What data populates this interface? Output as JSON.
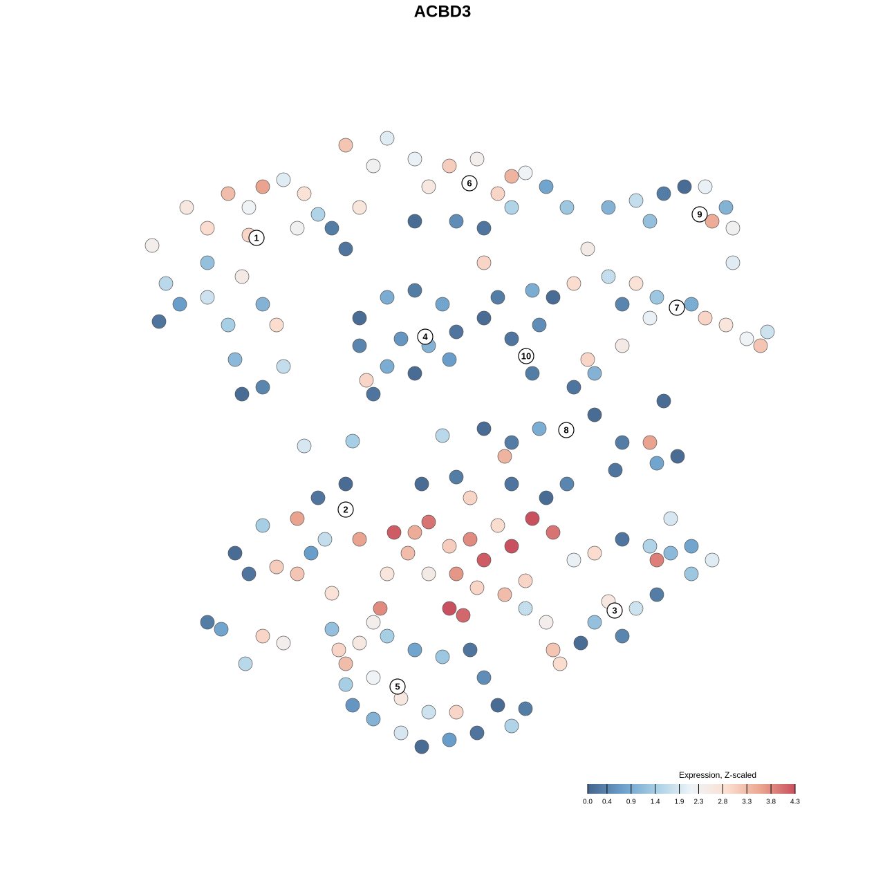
{
  "chart_data": {
    "type": "scatter",
    "title": "ACBD3",
    "xlim": [
      200,
      1130
    ],
    "ylim": [
      1095,
      185
    ],
    "x": [
      220,
      240,
      270,
      300,
      330,
      360,
      380,
      410,
      440,
      460,
      300,
      350,
      380,
      400,
      330,
      300,
      260,
      230,
      340,
      350,
      380,
      410,
      480,
      500,
      520,
      540,
      560,
      500,
      430,
      360,
      600,
      620,
      650,
      690,
      720,
      740,
      760,
      790,
      820,
      700,
      660,
      600,
      740,
      700,
      880,
      920,
      960,
      990,
      1020,
      1050,
      1060,
      1030,
      940,
      1060,
      850,
      880,
      920,
      950,
      1000,
      1020,
      1050,
      1080,
      1100,
      1110,
      940,
      900,
      520,
      560,
      600,
      640,
      660,
      650,
      600,
      560,
      520,
      580,
      620,
      530,
      540,
      700,
      720,
      740,
      780,
      770,
      800,
      770,
      830,
      830,
      860,
      860,
      900,
      940,
      950,
      980,
      890,
      780,
      740,
      730,
      700,
      900,
      850,
      960,
      640,
      440,
      510,
      340,
      360,
      400,
      380,
      430,
      460,
      500,
      450,
      470,
      520,
      430,
      300,
      320,
      380,
      410,
      355,
      480,
      570,
      600,
      620,
      650,
      680,
      700,
      740,
      770,
      800,
      720,
      590,
      620,
      660,
      690,
      730,
      650,
      670,
      560,
      550,
      540,
      610,
      660,
      680,
      740,
      790,
      820,
      760,
      830,
      860,
      900,
      940,
      970,
      1000,
      1030,
      1000,
      950,
      920,
      880,
      860,
      900,
      840,
      800,
      790,
      760,
      810,
      970,
      950,
      490,
      520,
      560,
      600,
      640,
      680,
      700,
      720,
      740,
      690,
      650,
      610,
      580,
      540,
      510,
      500,
      540,
      580,
      620,
      660,
      500,
      480,
      760
    ],
    "y": [
      355,
      410,
      300,
      330,
      280,
      300,
      270,
      260,
      280,
      310,
      380,
      400,
      440,
      470,
      470,
      430,
      440,
      465,
      520,
      570,
      560,
      530,
      330,
      360,
      300,
      240,
      200,
      210,
      330,
      340,
      230,
      270,
      240,
      230,
      280,
      300,
      250,
      270,
      300,
      330,
      320,
      320,
      255,
      380,
      300,
      290,
      280,
      270,
      270,
      300,
      330,
      320,
      320,
      380,
      360,
      400,
      410,
      430,
      440,
      460,
      470,
      490,
      500,
      480,
      460,
      440,
      460,
      430,
      420,
      440,
      480,
      520,
      540,
      530,
      500,
      490,
      500,
      550,
      570,
      460,
      430,
      490,
      470,
      540,
      430,
      420,
      410,
      560,
      540,
      600,
      640,
      640,
      670,
      660,
      680,
      620,
      640,
      660,
      620,
      500,
      520,
      580,
      630,
      645,
      638,
      800,
      830,
      820,
      760,
      750,
      720,
      700,
      800,
      780,
      780,
      830,
      900,
      910,
      920,
      930,
      960,
      858,
      770,
      770,
      755,
      790,
      780,
      810,
      790,
      750,
      770,
      760,
      800,
      830,
      830,
      850,
      860,
      880,
      890,
      830,
      880,
      900,
      700,
      690,
      720,
      700,
      720,
      700,
      840,
      810,
      800,
      780,
      790,
      800,
      790,
      810,
      830,
      860,
      880,
      870,
      900,
      920,
      930,
      940,
      900,
      880,
      960,
      750,
      810,
      940,
      930,
      920,
      940,
      950,
      940,
      980,
      1020,
      1050,
      1060,
      1070,
      1080,
      1060,
      1040,
      1020,
      990,
      980,
      1010,
      1030,
      1030,
      960,
      910,
      1025
    ],
    "values": [
      2.4,
      1.6,
      2.6,
      2.9,
      3.3,
      2.2,
      3.6,
      2.0,
      2.8,
      1.5,
      1.2,
      2.5,
      1.0,
      2.9,
      1.4,
      1.8,
      0.7,
      0.2,
      1.1,
      0.1,
      0.4,
      1.7,
      0.3,
      0.2,
      2.7,
      2.3,
      2.0,
      3.2,
      2.3,
      3.0,
      2.1,
      2.6,
      3.1,
      2.4,
      3.0,
      1.5,
      2.2,
      0.8,
      1.3,
      0.2,
      0.5,
      0.1,
      3.4,
      3.0,
      1.0,
      1.7,
      0.3,
      0.1,
      2.1,
      1.0,
      2.3,
      3.5,
      1.2,
      2.0,
      2.5,
      1.7,
      2.8,
      1.3,
      0.9,
      3.0,
      2.7,
      2.2,
      3.2,
      1.8,
      2.1,
      0.4,
      0.1,
      0.9,
      0.3,
      0.8,
      0.2,
      0.7,
      0.1,
      0.9,
      0.4,
      0.6,
      1.0,
      3.0,
      0.2,
      0.1,
      0.3,
      0.2,
      0.5,
      0.3,
      0.1,
      0.9,
      2.9,
      0.2,
      1.0,
      0.1,
      0.3,
      3.6,
      0.8,
      0.1,
      0.2,
      0.9,
      0.3,
      3.4,
      0.1,
      2.5,
      3.0,
      0.1,
      1.6,
      1.9,
      1.4,
      0.1,
      0.2,
      3.1,
      1.4,
      3.6,
      0.2,
      0.1,
      0.7,
      1.7,
      3.6,
      3.2,
      0.3,
      0.8,
      3.0,
      2.4,
      1.6,
      2.8,
      4.2,
      3.5,
      4.0,
      3.1,
      3.8,
      4.2,
      4.3,
      4.3,
      4.0,
      2.9,
      3.3,
      2.5,
      3.7,
      3.0,
      3.3,
      4.3,
      4.1,
      2.7,
      3.8,
      2.4,
      0.1,
      0.3,
      3.0,
      0.2,
      0.1,
      0.4,
      3.0,
      2.1,
      2.9,
      0.2,
      1.5,
      1.1,
      0.8,
      2.0,
      1.3,
      0.3,
      1.8,
      2.6,
      1.2,
      0.4,
      0.1,
      3.2,
      2.4,
      1.7,
      2.9,
      1.9,
      3.9,
      3.0,
      2.6,
      1.4,
      0.8,
      1.3,
      0.2,
      0.5,
      0.1,
      1.5,
      0.2,
      0.7,
      0.1,
      1.9,
      1.0,
      0.6,
      1.4,
      2.2,
      2.6,
      1.8,
      3.0,
      3.3,
      1.2,
      0.3
    ],
    "cluster_labels": {
      "labels": [
        "1",
        "2",
        "3",
        "4",
        "5",
        "6",
        "7",
        "8",
        "9",
        "10"
      ],
      "x": [
        371,
        500,
        889,
        615,
        575,
        679,
        979,
        819,
        1012,
        761
      ],
      "y": [
        344,
        737,
        883,
        487,
        993,
        265,
        445,
        622,
        310,
        515
      ]
    },
    "colorbar": {
      "title": "Expression, Z-scaled",
      "clim": [
        0,
        4.3
      ],
      "colors": [
        "#44648c",
        "#6b9fcb",
        "#a9d0e5",
        "#eef4f8",
        "#fbe0d2",
        "#eba58f",
        "#c9505e"
      ],
      "ticks": [
        {
          "value": 0,
          "label": "0.0"
        },
        0.4,
        0.9,
        1.4,
        1.9,
        2.3,
        2.8,
        3.3,
        3.8,
        4.3
      ]
    }
  }
}
